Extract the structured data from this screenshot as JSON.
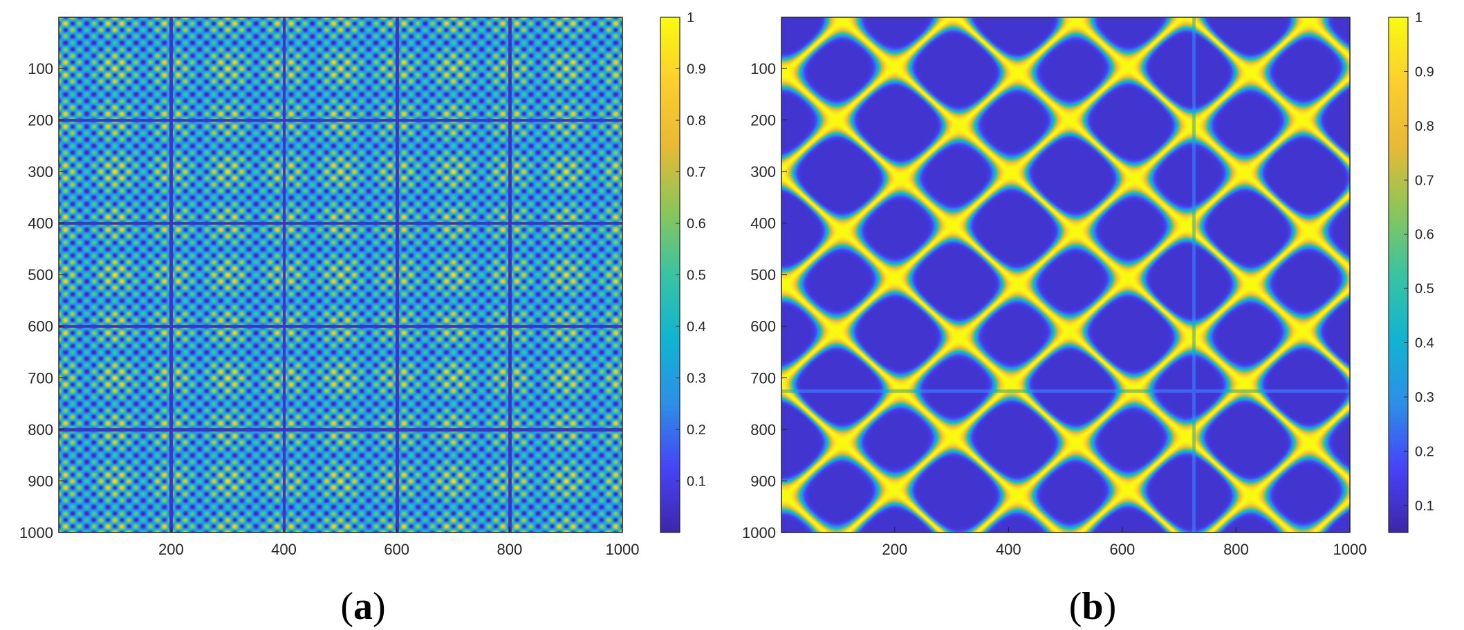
{
  "chart_data": [
    {
      "type": "heatmap",
      "panel_label": "a",
      "x_range": [
        1,
        1000
      ],
      "y_range": [
        1,
        1000
      ],
      "x_ticks": [
        200,
        400,
        600,
        800,
        1000
      ],
      "y_ticks": [
        100,
        200,
        300,
        400,
        500,
        600,
        700,
        800,
        900,
        1000
      ],
      "y_direction": "top-to-bottom",
      "value_range": [
        0,
        1
      ],
      "colorbar_ticks": [
        0.1,
        0.2,
        0.3,
        0.4,
        0.5,
        0.6,
        0.7,
        0.8,
        0.9,
        1
      ],
      "colormap": "parula",
      "grid": false,
      "pattern": "fine checkerboard with block structure; dark dividing lines every 200 samples (200, 400, 600, 800)"
    },
    {
      "type": "heatmap",
      "panel_label": "b",
      "x_range": [
        1,
        1000
      ],
      "y_range": [
        1,
        1000
      ],
      "x_ticks": [
        200,
        400,
        600,
        800,
        1000
      ],
      "y_ticks": [
        100,
        200,
        300,
        400,
        500,
        600,
        700,
        800,
        900,
        1000
      ],
      "y_direction": "top-to-bottom",
      "value_range": [
        0.05,
        1
      ],
      "colorbar_ticks": [
        0.1,
        0.2,
        0.3,
        0.4,
        0.5,
        0.6,
        0.7,
        0.8,
        0.9,
        1
      ],
      "colormap": "parula",
      "grid": false,
      "pattern": "smooth lattice of yellow crossing curves around dark blue cells; discontinuity near sample 725"
    }
  ],
  "colors": {
    "parula_stops": [
      "#3e26a8",
      "#4743f8",
      "#2d8fe6",
      "#10b4d2",
      "#38c3a2",
      "#8bc658",
      "#e8b935",
      "#fcce2e",
      "#f9fb0e"
    ]
  }
}
